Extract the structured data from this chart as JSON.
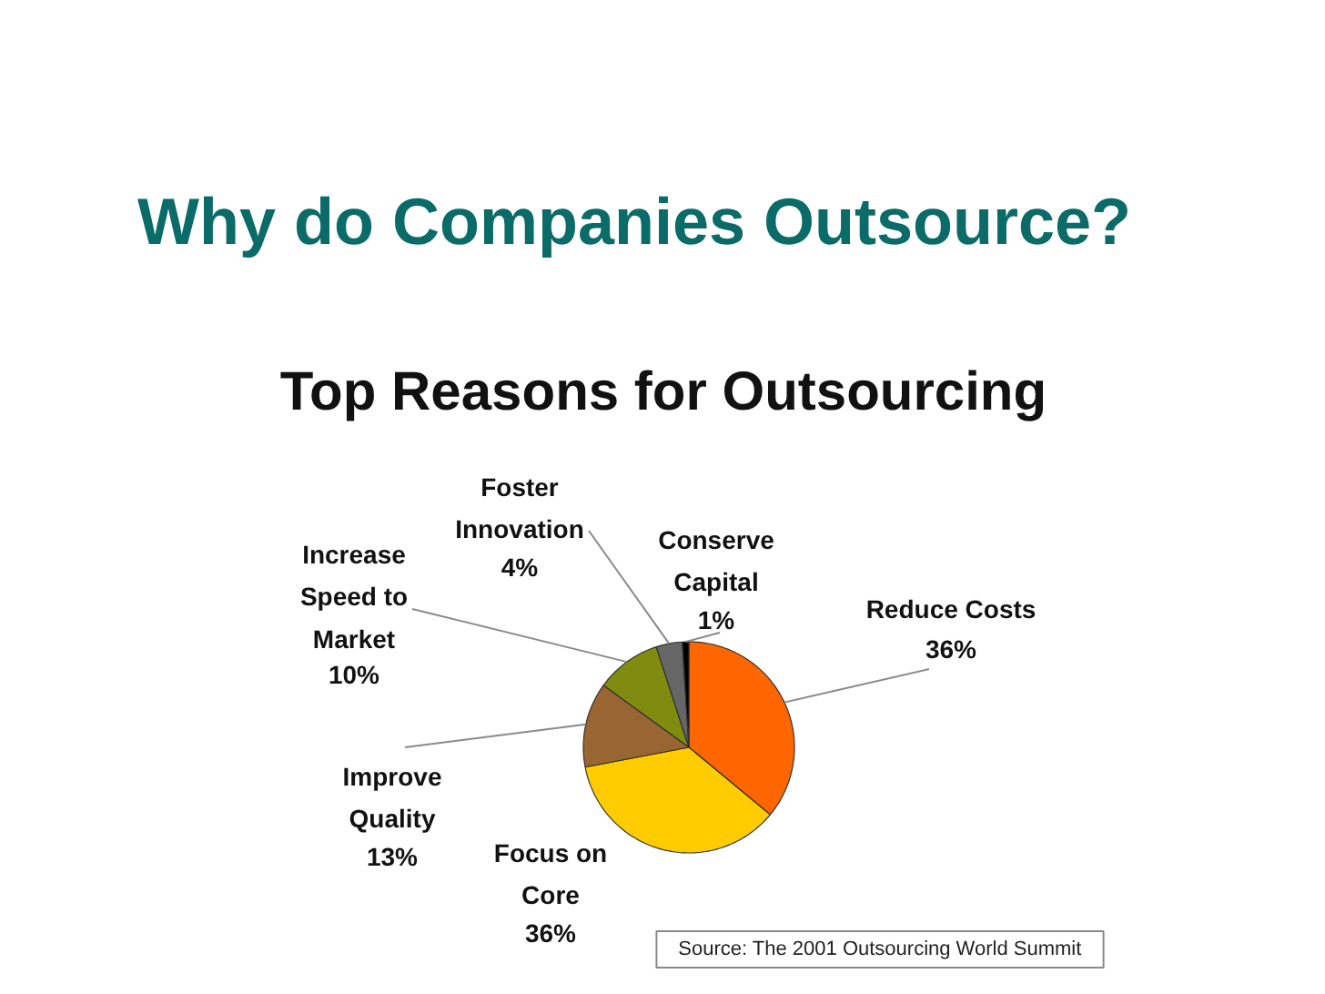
{
  "chart_data": {
    "type": "pie",
    "title": "Why do Companies Outsource?",
    "subtitle": "Top Reasons for Outsourcing",
    "categories": [
      "Reduce Costs",
      "Focus on Core",
      "Improve Quality",
      "Increase Speed to Market",
      "Foster Innovation",
      "Conserve Capital"
    ],
    "values": [
      36,
      36,
      13,
      10,
      4,
      1
    ],
    "colors": [
      "#ff6600",
      "#ffcc00",
      "#996633",
      "#7f8c10",
      "#666666",
      "#000000"
    ],
    "value_labels": [
      "36%",
      "36%",
      "13%",
      "10%",
      "4%",
      "1%"
    ],
    "annotations": [
      "Source: The 2001 Outsourcing World Summit"
    ]
  }
}
